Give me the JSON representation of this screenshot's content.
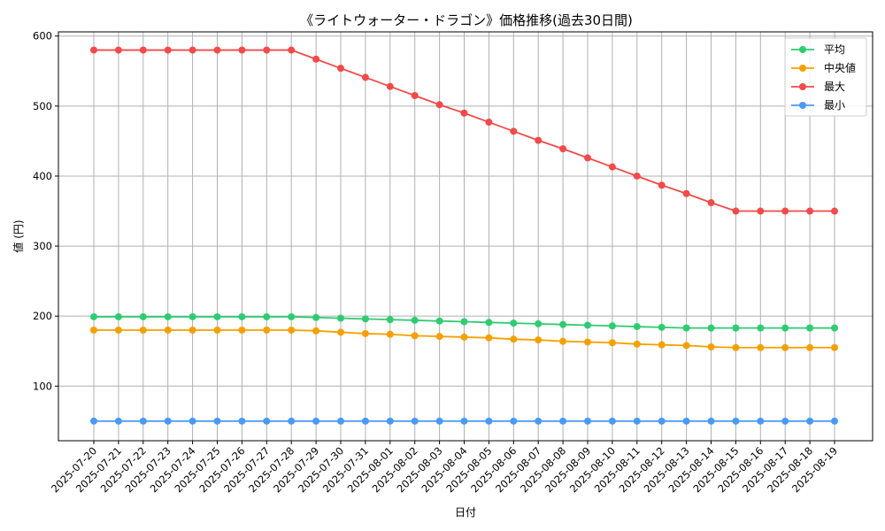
{
  "chart_data": {
    "type": "line",
    "title": "《ライトウォーター・ドラゴン》価格推移(過去30日間)",
    "xlabel": "日付",
    "ylabel": "値 (円)",
    "ylim": [
      22,
      606
    ],
    "yticks": [
      100,
      200,
      300,
      400,
      500,
      600
    ],
    "grid": true,
    "legend_position": "top-right",
    "x": [
      "2025-07-20",
      "2025-07-21",
      "2025-07-22",
      "2025-07-23",
      "2025-07-24",
      "2025-07-25",
      "2025-07-26",
      "2025-07-27",
      "2025-07-28",
      "2025-07-29",
      "2025-07-30",
      "2025-07-31",
      "2025-08-01",
      "2025-08-02",
      "2025-08-03",
      "2025-08-04",
      "2025-08-05",
      "2025-08-06",
      "2025-08-07",
      "2025-08-08",
      "2025-08-09",
      "2025-08-10",
      "2025-08-11",
      "2025-08-12",
      "2025-08-13",
      "2025-08-14",
      "2025-08-15",
      "2025-08-16",
      "2025-08-17",
      "2025-08-18",
      "2025-08-19"
    ],
    "series": [
      {
        "name": "平均",
        "color": "#2ecc71",
        "values": [
          199,
          199,
          199,
          199,
          199,
          199,
          199,
          199,
          199,
          198,
          197,
          196,
          195,
          194,
          193,
          192,
          191,
          190,
          189,
          188,
          187,
          186,
          185,
          184,
          183,
          183,
          183,
          183,
          183,
          183,
          183
        ]
      },
      {
        "name": "中央値",
        "color": "#f5a000",
        "values": [
          180,
          180,
          180,
          180,
          180,
          180,
          180,
          180,
          180,
          179,
          177,
          175,
          174,
          172,
          171,
          170,
          169,
          167,
          166,
          164,
          163,
          162,
          160,
          159,
          158,
          156,
          155,
          155,
          155,
          155,
          155
        ]
      },
      {
        "name": "最大",
        "color": "#f24a4a",
        "values": [
          580,
          580,
          580,
          580,
          580,
          580,
          580,
          580,
          580,
          567,
          554,
          541,
          528,
          515,
          502,
          490,
          477,
          464,
          451,
          439,
          426,
          413,
          400,
          387,
          375,
          362,
          350,
          350,
          350,
          350,
          350
        ]
      },
      {
        "name": "最小",
        "color": "#4a9af5",
        "values": [
          50,
          50,
          50,
          50,
          50,
          50,
          50,
          50,
          50,
          50,
          50,
          50,
          50,
          50,
          50,
          50,
          50,
          50,
          50,
          50,
          50,
          50,
          50,
          50,
          50,
          50,
          50,
          50,
          50,
          50,
          50
        ]
      }
    ]
  }
}
